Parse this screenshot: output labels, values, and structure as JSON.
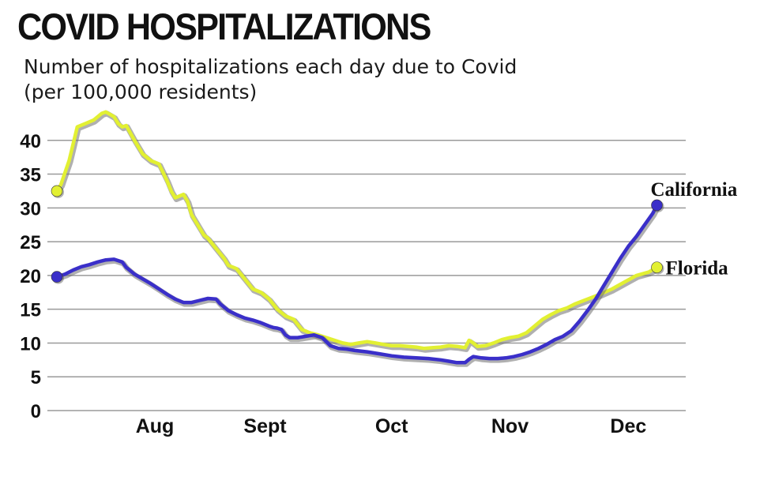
{
  "title": "COVID HOSPITALIZATIONS",
  "subtitle_line1": "Number of hospitalizations each day due to Covid",
  "subtitle_line2": "(per 100,000 residents)",
  "chart_data": {
    "type": "line",
    "title": "COVID HOSPITALIZATIONS",
    "ylabel": "Number of hospitalizations each day due to Covid (per 100,000 residents)",
    "xlabel": "",
    "ylim": [
      0,
      45
    ],
    "xlim": [
      0,
      150
    ],
    "yticks": [
      0,
      5,
      10,
      15,
      20,
      25,
      30,
      35,
      40
    ],
    "xticks": [
      {
        "label": "Aug",
        "x": 24
      },
      {
        "label": "Sept",
        "x": 51
      },
      {
        "label": "Oct",
        "x": 82
      },
      {
        "label": "Nov",
        "x": 111
      },
      {
        "label": "Dec",
        "x": 140
      }
    ],
    "grid": true,
    "series": [
      {
        "name": "Florida",
        "color": "#e2f032",
        "x": [
          0,
          1,
          3,
          5,
          7,
          9,
          10,
          11,
          12,
          14,
          15,
          16,
          17,
          19,
          21,
          23,
          25,
          27,
          28,
          29,
          31,
          32,
          33,
          35,
          36,
          37,
          39,
          41,
          42,
          44,
          46,
          48,
          50,
          52,
          54,
          56,
          58,
          60,
          62,
          64,
          66,
          68,
          70,
          72,
          74,
          76,
          78,
          80,
          82,
          84,
          86,
          88,
          90,
          92,
          94,
          96,
          98,
          100,
          101,
          102,
          103,
          105,
          107,
          109,
          111,
          113,
          115,
          117,
          119,
          121,
          123,
          125,
          127,
          130,
          133,
          136,
          139,
          142,
          145,
          147
        ],
        "values": [
          32.5,
          33.5,
          37,
          42,
          42.5,
          43,
          43.5,
          44,
          44.2,
          43.5,
          42.5,
          42,
          42.2,
          40,
          38,
          37,
          36.5,
          34,
          32.5,
          31.5,
          32,
          31,
          29,
          27,
          26,
          25.5,
          24,
          22.5,
          21.5,
          21,
          19.5,
          18,
          17.5,
          16.5,
          15,
          14,
          13.5,
          12,
          11.5,
          11.2,
          10.8,
          10.4,
          10,
          9.8,
          10,
          10.2,
          10,
          9.8,
          9.6,
          9.6,
          9.5,
          9.4,
          9.2,
          9.3,
          9.4,
          9.6,
          9.5,
          9.3,
          10.4,
          10,
          9.5,
          9.6,
          10,
          10.5,
          10.8,
          11,
          11.5,
          12.5,
          13.5,
          14.2,
          14.8,
          15.2,
          15.8,
          16.5,
          17.2,
          18,
          19,
          20,
          20.5,
          21.2
        ]
      },
      {
        "name": "California",
        "color": "#3a2fc9",
        "x": [
          0,
          2,
          4,
          6,
          8,
          10,
          12,
          14,
          16,
          17,
          19,
          21,
          23,
          25,
          27,
          29,
          31,
          33,
          35,
          37,
          39,
          40,
          42,
          44,
          46,
          48,
          50,
          52,
          53,
          54,
          55,
          56,
          57,
          59,
          61,
          63,
          65,
          67,
          69,
          71,
          73,
          76,
          79,
          82,
          85,
          88,
          91,
          94,
          96,
          98,
          100,
          101,
          102,
          104,
          106,
          108,
          110,
          112,
          114,
          116,
          118,
          120,
          122,
          124,
          126,
          128,
          130,
          132,
          134,
          136,
          138,
          140,
          142,
          144,
          146,
          147
        ],
        "values": [
          19.8,
          20.2,
          20.8,
          21.3,
          21.6,
          22,
          22.3,
          22.4,
          22,
          21.2,
          20.2,
          19.5,
          18.8,
          18,
          17.2,
          16.5,
          16,
          16,
          16.3,
          16.6,
          16.5,
          15.8,
          14.8,
          14.2,
          13.7,
          13.4,
          13,
          12.5,
          12.3,
          12.2,
          12,
          11.2,
          10.8,
          10.8,
          11,
          11.2,
          10.8,
          9.6,
          9.2,
          9.1,
          8.9,
          8.7,
          8.4,
          8.1,
          7.9,
          7.8,
          7.7,
          7.5,
          7.3,
          7.1,
          7.1,
          7.6,
          8,
          7.8,
          7.7,
          7.7,
          7.8,
          8,
          8.3,
          8.7,
          9.2,
          9.8,
          10.5,
          11,
          11.8,
          13.2,
          14.8,
          16.5,
          18.5,
          20.5,
          22.5,
          24.3,
          25.8,
          27.5,
          29.2,
          30.4
        ]
      }
    ]
  }
}
